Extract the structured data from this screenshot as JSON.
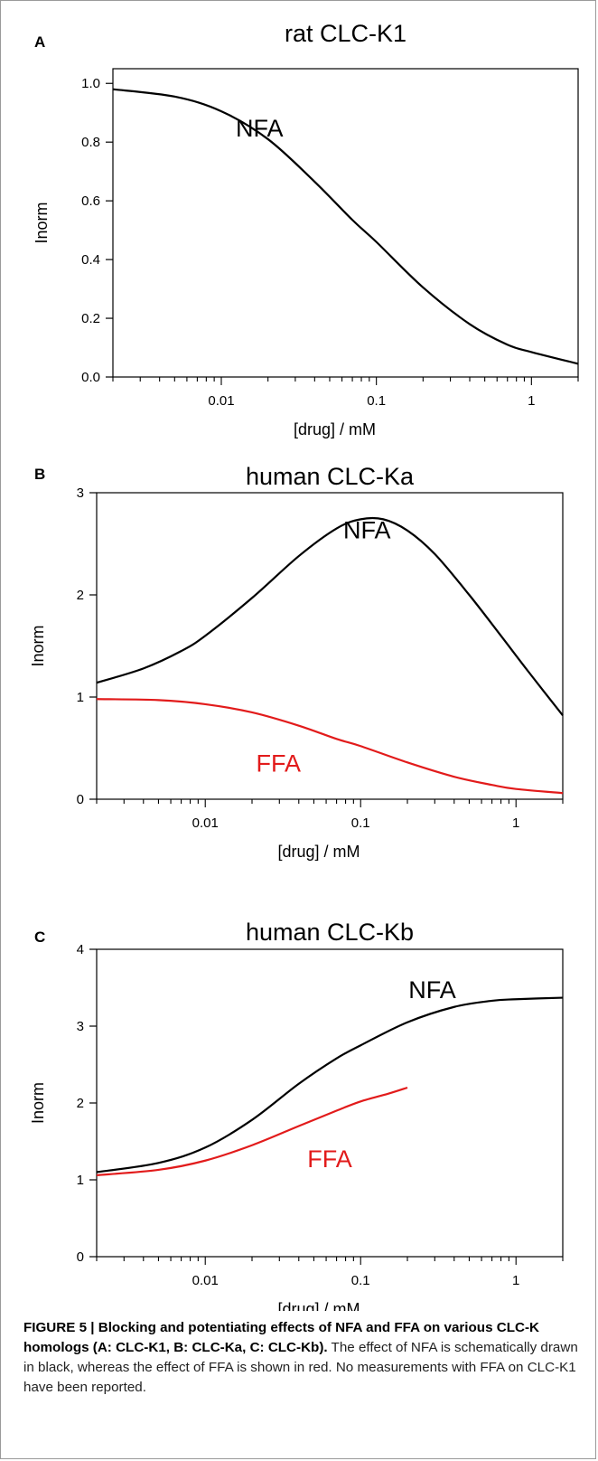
{
  "chart_data": [
    {
      "type": "line",
      "panel_label": "A",
      "title": "rat CLC-K1",
      "xlabel": "[drug] / mM",
      "ylabel": "Inorm",
      "xscale": "log",
      "xlim": [
        0.002,
        2
      ],
      "ylim": [
        0,
        1.05
      ],
      "x_ticks": [
        0.01,
        0.1,
        1
      ],
      "x_tick_labels": [
        "0.01",
        "0.1",
        "1"
      ],
      "y_ticks": [
        0,
        0.2,
        0.4,
        0.6,
        0.8,
        1.0
      ],
      "y_tick_labels": [
        "0.0",
        "0.2",
        "0.4",
        "0.6",
        "0.8",
        "1.0"
      ],
      "series": [
        {
          "name": "NFA",
          "color": "#000000",
          "x": [
            0.002,
            0.005,
            0.01,
            0.02,
            0.04,
            0.07,
            0.1,
            0.2,
            0.4,
            0.7,
            1,
            2
          ],
          "y": [
            0.98,
            0.955,
            0.905,
            0.81,
            0.665,
            0.535,
            0.46,
            0.305,
            0.18,
            0.11,
            0.085,
            0.045
          ]
        }
      ]
    },
    {
      "type": "line",
      "panel_label": "B",
      "title": "human CLC-Ka",
      "xlabel": "[drug] / mM",
      "ylabel": "Inorm",
      "xscale": "log",
      "xlim": [
        0.002,
        2
      ],
      "ylim": [
        0,
        3
      ],
      "x_ticks": [
        0.01,
        0.1,
        1
      ],
      "x_tick_labels": [
        "0.01",
        "0.1",
        "1"
      ],
      "y_ticks": [
        0,
        1,
        2,
        3
      ],
      "y_tick_labels": [
        "0",
        "1",
        "2",
        "3"
      ],
      "series": [
        {
          "name": "NFA",
          "color": "#000000",
          "x": [
            0.002,
            0.004,
            0.007,
            0.01,
            0.02,
            0.04,
            0.07,
            0.1,
            0.14,
            0.2,
            0.3,
            0.5,
            0.8,
            1.2,
            2
          ],
          "y": [
            1.14,
            1.28,
            1.45,
            1.6,
            1.97,
            2.38,
            2.65,
            2.74,
            2.74,
            2.63,
            2.4,
            2.0,
            1.6,
            1.25,
            0.82
          ]
        },
        {
          "name": "FFA",
          "color": "#e21b1b",
          "x": [
            0.002,
            0.005,
            0.01,
            0.02,
            0.04,
            0.07,
            0.1,
            0.2,
            0.4,
            0.7,
            1,
            2
          ],
          "y": [
            0.98,
            0.97,
            0.93,
            0.85,
            0.72,
            0.59,
            0.52,
            0.36,
            0.22,
            0.14,
            0.1,
            0.06
          ]
        }
      ]
    },
    {
      "type": "line",
      "panel_label": "C",
      "title": "human CLC-Kb",
      "xlabel": "[drug] / mM",
      "ylabel": "Inorm",
      "xscale": "log",
      "xlim": [
        0.002,
        2
      ],
      "ylim": [
        0,
        4
      ],
      "x_ticks": [
        0.01,
        0.1,
        1
      ],
      "x_tick_labels": [
        "0.01",
        "0.1",
        "1"
      ],
      "y_ticks": [
        0,
        1,
        2,
        3,
        4
      ],
      "y_tick_labels": [
        "0",
        "1",
        "2",
        "3",
        "4"
      ],
      "series": [
        {
          "name": "NFA",
          "color": "#000000",
          "x": [
            0.002,
            0.005,
            0.01,
            0.02,
            0.04,
            0.07,
            0.1,
            0.2,
            0.4,
            0.7,
            1,
            2
          ],
          "y": [
            1.1,
            1.22,
            1.42,
            1.78,
            2.25,
            2.58,
            2.75,
            3.05,
            3.25,
            3.33,
            3.35,
            3.37
          ]
        },
        {
          "name": "FFA",
          "color": "#e21b1b",
          "x": [
            0.002,
            0.005,
            0.01,
            0.02,
            0.04,
            0.07,
            0.1,
            0.15,
            0.2
          ],
          "y": [
            1.06,
            1.13,
            1.25,
            1.45,
            1.7,
            1.9,
            2.02,
            2.12,
            2.2
          ]
        }
      ]
    }
  ],
  "caption": {
    "bold": "FIGURE 5 | Blocking and potentiating effects of NFA and FFA on various CLC-K homologs (A: CLC-K1, B: CLC-Ka, C: CLC-Kb).",
    "text": " The effect of NFA is schematically drawn in black, whereas the effect of FFA is shown in red. No measurements with FFA on CLC-K1 have been reported."
  }
}
